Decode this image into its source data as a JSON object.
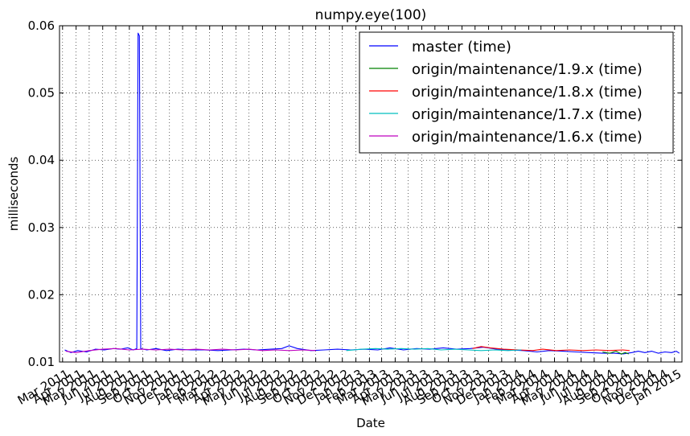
{
  "chart_data": {
    "type": "line",
    "title": "numpy.eye(100)",
    "xlabel": "Date",
    "ylabel": "milliseconds",
    "ylim": [
      0.01,
      0.06
    ],
    "xlim": [
      "2011-02-22",
      "2015-01-18"
    ],
    "grid": true,
    "legend_position": "top-right",
    "yticks": [
      {
        "value": 0.01,
        "label": "0.01"
      },
      {
        "value": 0.02,
        "label": "0.02"
      },
      {
        "value": 0.03,
        "label": "0.03"
      },
      {
        "value": 0.04,
        "label": "0.04"
      },
      {
        "value": 0.05,
        "label": "0.05"
      },
      {
        "value": 0.06,
        "label": "0.06"
      }
    ],
    "xticks": [
      {
        "date": "2011-03-01",
        "label": "Mar 2011"
      },
      {
        "date": "2011-04-01",
        "label": "Apr 2011"
      },
      {
        "date": "2011-05-01",
        "label": "May 2011"
      },
      {
        "date": "2011-06-01",
        "label": "Jun 2011"
      },
      {
        "date": "2011-07-01",
        "label": "Jul 2011"
      },
      {
        "date": "2011-08-01",
        "label": "Aug 2011"
      },
      {
        "date": "2011-09-01",
        "label": "Sep 2011"
      },
      {
        "date": "2011-10-01",
        "label": "Oct 2011"
      },
      {
        "date": "2011-11-01",
        "label": "Nov 2011"
      },
      {
        "date": "2011-12-01",
        "label": "Dec 2011"
      },
      {
        "date": "2012-01-01",
        "label": "Jan 2012"
      },
      {
        "date": "2012-02-01",
        "label": "Feb 2012"
      },
      {
        "date": "2012-03-01",
        "label": "Mar 2012"
      },
      {
        "date": "2012-04-01",
        "label": "Apr 2012"
      },
      {
        "date": "2012-05-01",
        "label": "May 2012"
      },
      {
        "date": "2012-06-01",
        "label": "Jun 2012"
      },
      {
        "date": "2012-07-01",
        "label": "Jul 2012"
      },
      {
        "date": "2012-08-01",
        "label": "Aug 2012"
      },
      {
        "date": "2012-09-01",
        "label": "Sep 2012"
      },
      {
        "date": "2012-10-01",
        "label": "Oct 2012"
      },
      {
        "date": "2012-11-01",
        "label": "Nov 2012"
      },
      {
        "date": "2012-12-01",
        "label": "Dec 2012"
      },
      {
        "date": "2013-01-01",
        "label": "Jan 2013"
      },
      {
        "date": "2013-02-01",
        "label": "Feb 2013"
      },
      {
        "date": "2013-03-01",
        "label": "Mar 2013"
      },
      {
        "date": "2013-04-01",
        "label": "Apr 2013"
      },
      {
        "date": "2013-05-01",
        "label": "May 2013"
      },
      {
        "date": "2013-06-01",
        "label": "Jun 2013"
      },
      {
        "date": "2013-07-01",
        "label": "Jul 2013"
      },
      {
        "date": "2013-08-01",
        "label": "Aug 2013"
      },
      {
        "date": "2013-09-01",
        "label": "Sep 2013"
      },
      {
        "date": "2013-10-01",
        "label": "Oct 2013"
      },
      {
        "date": "2013-11-01",
        "label": "Nov 2013"
      },
      {
        "date": "2013-12-01",
        "label": "Dec 2013"
      },
      {
        "date": "2014-01-01",
        "label": "Jan 2014"
      },
      {
        "date": "2014-02-01",
        "label": "Feb 2014"
      },
      {
        "date": "2014-03-01",
        "label": "Mar 2014"
      },
      {
        "date": "2014-04-01",
        "label": "Apr 2014"
      },
      {
        "date": "2014-05-01",
        "label": "May 2014"
      },
      {
        "date": "2014-06-01",
        "label": "Jun 2014"
      },
      {
        "date": "2014-07-01",
        "label": "Jul 2014"
      },
      {
        "date": "2014-08-01",
        "label": "Aug 2014"
      },
      {
        "date": "2014-09-01",
        "label": "Sep 2014"
      },
      {
        "date": "2014-10-01",
        "label": "Oct 2014"
      },
      {
        "date": "2014-11-01",
        "label": "Nov 2014"
      },
      {
        "date": "2014-12-01",
        "label": "Dec 2014"
      },
      {
        "date": "2015-01-01",
        "label": "Jan 2015"
      }
    ],
    "series": [
      {
        "name": "master (time)",
        "color": "#0000ff",
        "points": [
          [
            "2011-03-06",
            0.0118
          ],
          [
            "2011-03-20",
            0.0114
          ],
          [
            "2011-04-05",
            0.0117
          ],
          [
            "2011-04-25",
            0.0115
          ],
          [
            "2011-05-15",
            0.0119
          ],
          [
            "2011-06-05",
            0.0118
          ],
          [
            "2011-06-25",
            0.012
          ],
          [
            "2011-07-12",
            0.0119
          ],
          [
            "2011-07-28",
            0.0121
          ],
          [
            "2011-08-10",
            0.0118
          ],
          [
            "2011-08-18",
            0.012
          ],
          [
            "2011-08-21",
            0.0589
          ],
          [
            "2011-08-24",
            0.0585
          ],
          [
            "2011-08-27",
            0.012
          ],
          [
            "2011-09-10",
            0.0118
          ],
          [
            "2011-10-01",
            0.012
          ],
          [
            "2011-10-25",
            0.0117
          ],
          [
            "2011-11-20",
            0.0119
          ],
          [
            "2011-12-20",
            0.0118
          ],
          [
            "2012-01-20",
            0.0118
          ],
          [
            "2012-02-20",
            0.0117
          ],
          [
            "2012-03-20",
            0.0118
          ],
          [
            "2012-04-20",
            0.0119
          ],
          [
            "2012-05-20",
            0.0118
          ],
          [
            "2012-06-20",
            0.0119
          ],
          [
            "2012-07-15",
            0.012
          ],
          [
            "2012-08-01",
            0.0124
          ],
          [
            "2012-08-20",
            0.012
          ],
          [
            "2012-09-20",
            0.0117
          ],
          [
            "2012-10-20",
            0.0118
          ],
          [
            "2012-11-20",
            0.0119
          ],
          [
            "2012-12-20",
            0.0118
          ],
          [
            "2013-01-20",
            0.0119
          ],
          [
            "2013-02-20",
            0.0118
          ],
          [
            "2013-03-20",
            0.0121
          ],
          [
            "2013-04-20",
            0.0118
          ],
          [
            "2013-05-20",
            0.012
          ],
          [
            "2013-06-20",
            0.0119
          ],
          [
            "2013-07-20",
            0.0121
          ],
          [
            "2013-08-20",
            0.0119
          ],
          [
            "2013-09-20",
            0.012
          ],
          [
            "2013-10-20",
            0.0122
          ],
          [
            "2013-11-20",
            0.0119
          ],
          [
            "2013-12-20",
            0.0118
          ],
          [
            "2014-01-20",
            0.0117
          ],
          [
            "2014-02-20",
            0.0115
          ],
          [
            "2014-03-20",
            0.0117
          ],
          [
            "2014-04-20",
            0.0116
          ],
          [
            "2014-05-20",
            0.0115
          ],
          [
            "2014-06-20",
            0.0114
          ],
          [
            "2014-07-20",
            0.0113
          ],
          [
            "2014-08-15",
            0.0113
          ],
          [
            "2014-09-05",
            0.0112
          ],
          [
            "2014-09-25",
            0.0114
          ],
          [
            "2014-10-10",
            0.0116
          ],
          [
            "2014-10-25",
            0.0114
          ],
          [
            "2014-11-10",
            0.0116
          ],
          [
            "2014-11-25",
            0.0113
          ],
          [
            "2014-12-10",
            0.0115
          ],
          [
            "2014-12-25",
            0.0114
          ],
          [
            "2015-01-05",
            0.0116
          ],
          [
            "2015-01-12",
            0.0113
          ]
        ]
      },
      {
        "name": "origin/maintenance/1.9.x (time)",
        "color": "#008000",
        "points": [
          [
            "2014-07-20",
            0.0115
          ],
          [
            "2014-08-05",
            0.0113
          ],
          [
            "2014-08-20",
            0.0116
          ],
          [
            "2014-09-01",
            0.0112
          ],
          [
            "2014-09-10",
            0.0114
          ],
          [
            "2014-09-18",
            0.0112
          ]
        ]
      },
      {
        "name": "origin/maintenance/1.8.x (time)",
        "color": "#ff0000",
        "points": [
          [
            "2013-09-25",
            0.012
          ],
          [
            "2013-10-15",
            0.0123
          ],
          [
            "2013-11-05",
            0.0121
          ],
          [
            "2013-12-05",
            0.0119
          ],
          [
            "2014-01-10",
            0.0118
          ],
          [
            "2014-02-10",
            0.0117
          ],
          [
            "2014-03-05",
            0.0119
          ],
          [
            "2014-04-05",
            0.0117
          ],
          [
            "2014-05-05",
            0.0118
          ],
          [
            "2014-06-05",
            0.0117
          ],
          [
            "2014-07-05",
            0.0118
          ],
          [
            "2014-08-05",
            0.0117
          ],
          [
            "2014-09-05",
            0.0118
          ],
          [
            "2014-09-20",
            0.0117
          ]
        ]
      },
      {
        "name": "origin/maintenance/1.7.x (time)",
        "color": "#00bfbf",
        "points": [
          [
            "2012-12-10",
            0.0117
          ],
          [
            "2013-01-15",
            0.0119
          ],
          [
            "2013-02-15",
            0.012
          ],
          [
            "2013-03-15",
            0.0119
          ],
          [
            "2013-04-15",
            0.012
          ],
          [
            "2013-05-15",
            0.0119
          ],
          [
            "2013-06-15",
            0.012
          ],
          [
            "2013-07-15",
            0.0118
          ],
          [
            "2013-08-15",
            0.0119
          ],
          [
            "2013-09-15",
            0.0118
          ],
          [
            "2013-10-15",
            0.0117
          ],
          [
            "2013-11-15",
            0.0118
          ],
          [
            "2013-12-15",
            0.0117
          ],
          [
            "2014-01-15",
            0.0118
          ]
        ]
      },
      {
        "name": "origin/maintenance/1.6.x (time)",
        "color": "#bf00bf",
        "points": [
          [
            "2011-03-08",
            0.0116
          ],
          [
            "2011-04-01",
            0.0114
          ],
          [
            "2011-05-01",
            0.0117
          ],
          [
            "2011-06-01",
            0.0119
          ],
          [
            "2011-07-01",
            0.012
          ],
          [
            "2011-08-01",
            0.0118
          ],
          [
            "2011-09-01",
            0.0119
          ],
          [
            "2011-10-01",
            0.0118
          ],
          [
            "2011-11-01",
            0.0119
          ],
          [
            "2011-12-01",
            0.0118
          ],
          [
            "2012-01-01",
            0.0119
          ],
          [
            "2012-02-01",
            0.0118
          ],
          [
            "2012-03-01",
            0.0119
          ],
          [
            "2012-04-01",
            0.0118
          ],
          [
            "2012-05-01",
            0.0119
          ],
          [
            "2012-06-01",
            0.0117
          ],
          [
            "2012-07-01",
            0.0118
          ],
          [
            "2012-08-01",
            0.0117
          ],
          [
            "2012-09-01",
            0.0118
          ],
          [
            "2012-10-01",
            0.0117
          ]
        ]
      }
    ]
  }
}
